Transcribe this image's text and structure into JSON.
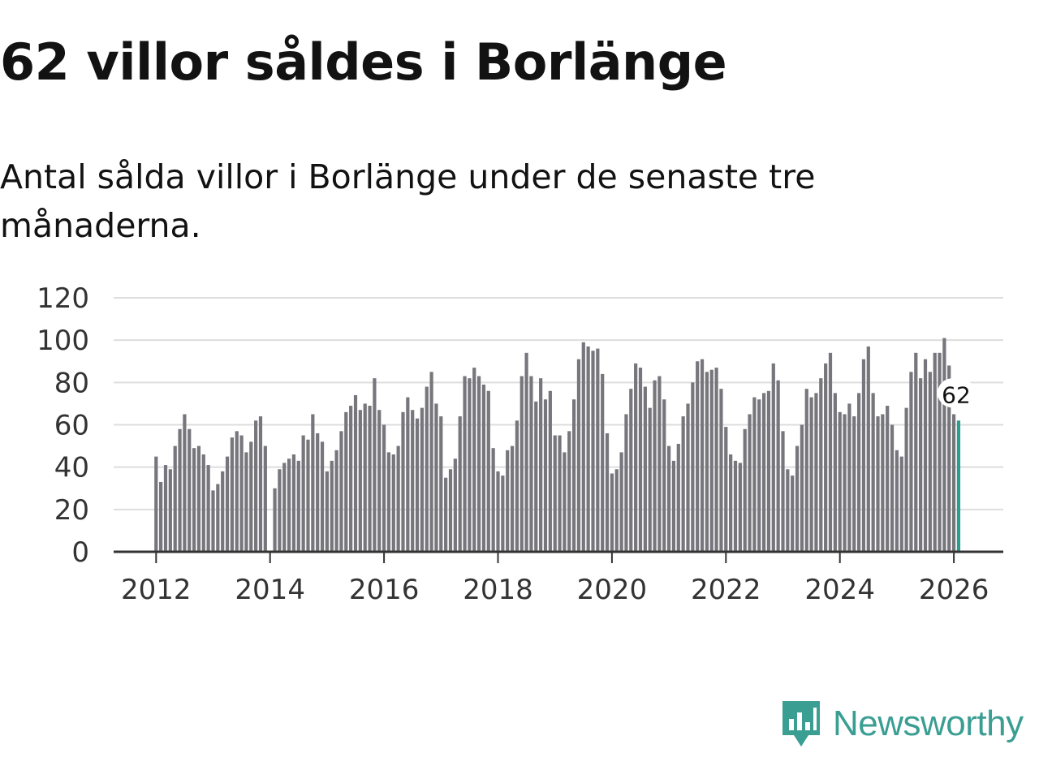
{
  "title": "62 villor såldes i Borlänge",
  "subtitle": "Antal sålda villor i Borlänge under de senaste tre månaderna.",
  "brand": {
    "name": "Newsworthy",
    "color": "#3a9e92",
    "icon": "bar-chart-pin-icon"
  },
  "colors": {
    "bar": "#77767c",
    "highlight": "#2a9d8f",
    "grid": "#dddddd",
    "axis": "#333333"
  },
  "chart_data": {
    "type": "bar",
    "title": "62 villor såldes i Borlänge",
    "xlabel": "",
    "ylabel": "",
    "ylim": [
      0,
      120
    ],
    "yticks": [
      0,
      20,
      40,
      60,
      80,
      100,
      120
    ],
    "xticks": [
      "2012",
      "2014",
      "2016",
      "2018",
      "2020",
      "2022",
      "2024",
      "2026"
    ],
    "x_start": "2012-01",
    "highlight_label": "62",
    "series": [
      {
        "name": "Sålda villor",
        "values": [
          45,
          33,
          41,
          39,
          50,
          58,
          65,
          58,
          49,
          50,
          46,
          41,
          29,
          32,
          38,
          45,
          54,
          57,
          55,
          47,
          52,
          62,
          64,
          50,
          null,
          30,
          39,
          42,
          44,
          46,
          43,
          55,
          53,
          65,
          56,
          52,
          38,
          43,
          48,
          57,
          66,
          69,
          74,
          67,
          70,
          69,
          82,
          67,
          60,
          47,
          46,
          50,
          66,
          73,
          67,
          63,
          68,
          78,
          85,
          70,
          64,
          35,
          39,
          44,
          64,
          83,
          82,
          87,
          83,
          79,
          76,
          49,
          38,
          36,
          48,
          50,
          62,
          83,
          94,
          83,
          71,
          82,
          72,
          76,
          55,
          55,
          47,
          57,
          72,
          91,
          99,
          97,
          95,
          96,
          84,
          56,
          37,
          39,
          47,
          65,
          77,
          89,
          87,
          78,
          68,
          81,
          83,
          72,
          50,
          43,
          51,
          64,
          70,
          80,
          90,
          91,
          85,
          86,
          87,
          77,
          59,
          46,
          43,
          42,
          58,
          65,
          73,
          72,
          75,
          76,
          89,
          81,
          57,
          39,
          36,
          50,
          60,
          77,
          73,
          75,
          82,
          89,
          94,
          75,
          66,
          65,
          70,
          64,
          75,
          91,
          97,
          75,
          64,
          65,
          69,
          60,
          48,
          45,
          68,
          85,
          94,
          82,
          91,
          85,
          94,
          94,
          101,
          88,
          65,
          62
        ]
      }
    ]
  }
}
